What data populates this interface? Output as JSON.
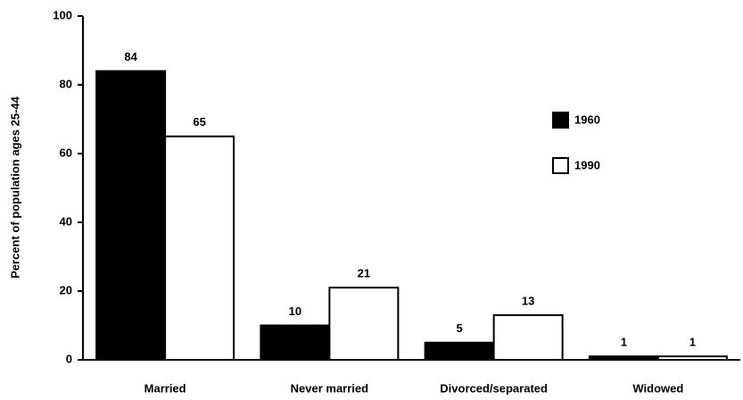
{
  "chart_data": {
    "type": "bar",
    "y_label": "Percent of population ages 25-44",
    "categories": [
      "Married",
      "Never married",
      "Divorced/separated",
      "Widowed"
    ],
    "series": [
      {
        "name": "1960",
        "color": "#000000",
        "values": [
          84,
          10,
          5,
          1
        ]
      },
      {
        "name": "1990",
        "color": "#ffffff",
        "values": [
          65,
          21,
          13,
          1
        ]
      }
    ],
    "ylim": [
      0,
      100
    ],
    "yticks": [
      0,
      20,
      40,
      60,
      80,
      100
    ],
    "grid": false,
    "legend": "upper right"
  }
}
